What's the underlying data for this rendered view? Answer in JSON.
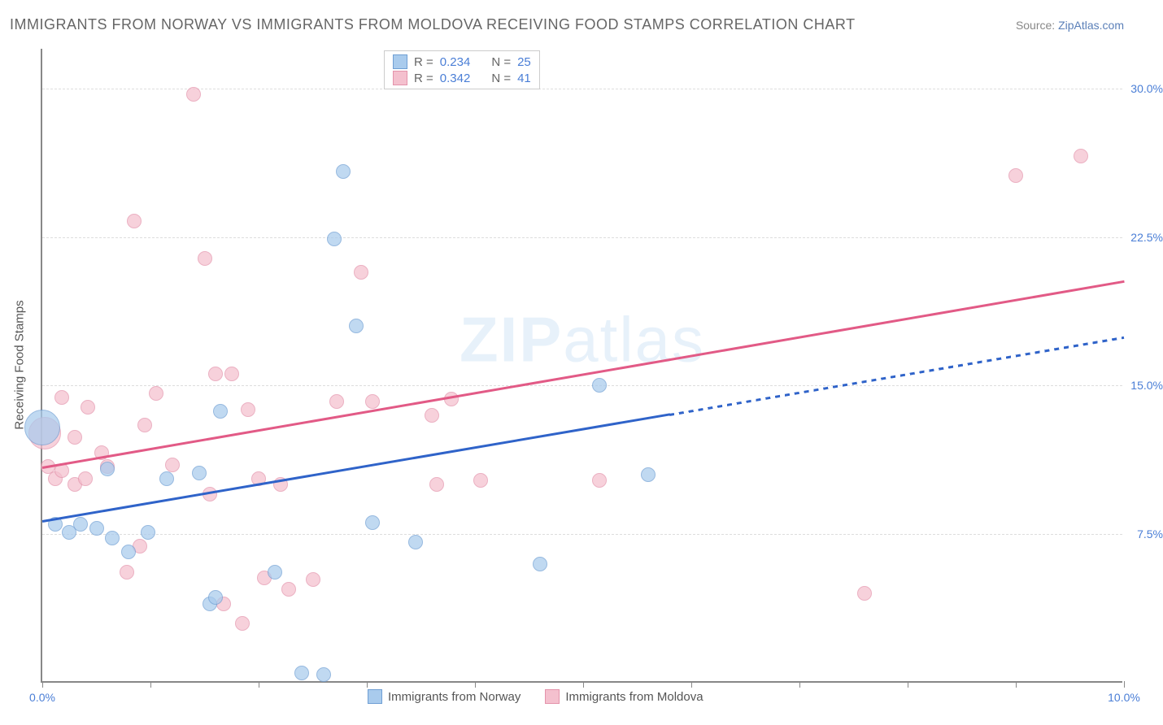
{
  "title": "IMMIGRANTS FROM NORWAY VS IMMIGRANTS FROM MOLDOVA RECEIVING FOOD STAMPS CORRELATION CHART",
  "source_label": "Source: ",
  "source_name": "ZipAtlas.com",
  "watermark_text_bold": "ZIP",
  "watermark_text_thin": "atlas",
  "y_axis_title": "Receiving Food Stamps",
  "colors": {
    "series_a_fill": "#a9cbed",
    "series_a_border": "#6f9fd4",
    "series_a_line": "#2f63c9",
    "series_b_fill": "#f4c0ce",
    "series_b_border": "#e493ab",
    "series_b_line": "#e25a86",
    "axis_text_blue": "#4a7ed6",
    "grid": "#dddddd"
  },
  "chart": {
    "type": "scatter",
    "xlim": [
      0,
      10
    ],
    "ylim": [
      0,
      32
    ],
    "x_ticks": [
      0,
      1,
      2,
      3,
      4,
      5,
      6,
      7,
      8,
      9,
      10
    ],
    "x_tick_labels": {
      "0": "0.0%",
      "10": "10.0%"
    },
    "y_gridlines": [
      7.5,
      15.0,
      22.5,
      30.0
    ],
    "y_tick_labels": [
      "7.5%",
      "15.0%",
      "22.5%",
      "30.0%"
    ]
  },
  "legend_top": [
    {
      "swatch": "series_a",
      "r_label": "R =",
      "r_val": "0.234",
      "n_label": "N =",
      "n_val": "25"
    },
    {
      "swatch": "series_b",
      "r_label": "R =",
      "r_val": "0.342",
      "n_label": "N =",
      "n_val": "41"
    }
  ],
  "legend_bottom": [
    {
      "swatch": "series_a",
      "label": "Immigrants from Norway"
    },
    {
      "swatch": "series_b",
      "label": "Immigrants from Moldova"
    }
  ],
  "series_a": {
    "name": "Immigrants from Norway",
    "point_radius": 9,
    "points": [
      [
        0.0,
        12.9,
        22
      ],
      [
        0.12,
        8.0
      ],
      [
        0.25,
        7.6
      ],
      [
        0.35,
        8.0
      ],
      [
        0.5,
        7.8
      ],
      [
        0.6,
        10.8
      ],
      [
        0.65,
        7.3
      ],
      [
        0.8,
        6.6
      ],
      [
        0.98,
        7.6
      ],
      [
        1.15,
        10.3
      ],
      [
        1.45,
        10.6
      ],
      [
        1.55,
        4.0
      ],
      [
        1.6,
        4.3
      ],
      [
        1.65,
        13.7
      ],
      [
        2.15,
        5.6
      ],
      [
        2.4,
        0.5
      ],
      [
        2.6,
        0.4
      ],
      [
        2.7,
        22.4
      ],
      [
        2.78,
        25.8
      ],
      [
        2.9,
        18.0
      ],
      [
        3.05,
        8.1
      ],
      [
        3.45,
        7.1
      ],
      [
        4.6,
        6.0
      ],
      [
        5.15,
        15.0
      ],
      [
        5.6,
        10.5
      ]
    ],
    "trend": {
      "x1": 0.0,
      "y1": 8.2,
      "x2": 5.8,
      "y2": 13.6,
      "solid": true
    },
    "trend_ext": {
      "x1": 5.8,
      "y1": 13.6,
      "x2": 10.0,
      "y2": 17.5,
      "solid": false
    }
  },
  "series_b": {
    "name": "Immigrants from Moldova",
    "point_radius": 9,
    "points": [
      [
        0.02,
        12.6,
        20
      ],
      [
        0.05,
        10.9
      ],
      [
        0.12,
        10.3
      ],
      [
        0.18,
        10.7
      ],
      [
        0.18,
        14.4
      ],
      [
        0.3,
        12.4
      ],
      [
        0.3,
        10.0
      ],
      [
        0.4,
        10.3
      ],
      [
        0.42,
        13.9
      ],
      [
        0.55,
        11.6
      ],
      [
        0.6,
        10.9
      ],
      [
        0.78,
        5.6
      ],
      [
        0.85,
        23.3
      ],
      [
        0.9,
        6.9
      ],
      [
        0.95,
        13.0
      ],
      [
        1.05,
        14.6
      ],
      [
        1.2,
        11.0
      ],
      [
        1.4,
        29.7
      ],
      [
        1.5,
        21.4
      ],
      [
        1.55,
        9.5
      ],
      [
        1.6,
        15.6
      ],
      [
        1.68,
        4.0
      ],
      [
        1.75,
        15.6
      ],
      [
        1.85,
        3.0
      ],
      [
        1.9,
        13.8
      ],
      [
        2.0,
        10.3
      ],
      [
        2.05,
        5.3
      ],
      [
        2.2,
        10.0
      ],
      [
        2.28,
        4.7
      ],
      [
        2.5,
        5.2
      ],
      [
        2.72,
        14.2
      ],
      [
        2.95,
        20.7
      ],
      [
        3.05,
        14.2
      ],
      [
        3.6,
        13.5
      ],
      [
        3.65,
        10.0
      ],
      [
        3.78,
        14.3
      ],
      [
        4.05,
        10.2
      ],
      [
        5.15,
        10.2
      ],
      [
        7.6,
        4.5
      ],
      [
        9.0,
        25.6
      ],
      [
        9.6,
        26.6
      ]
    ],
    "trend": {
      "x1": 0.0,
      "y1": 10.9,
      "x2": 10.0,
      "y2": 20.3,
      "solid": true
    }
  }
}
